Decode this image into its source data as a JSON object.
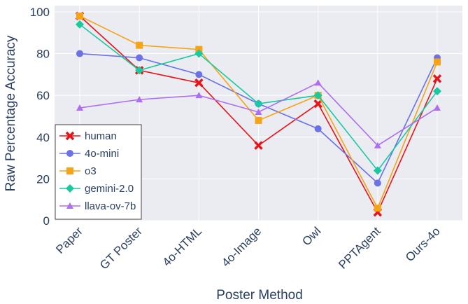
{
  "chart_data": {
    "type": "line",
    "title": "",
    "xlabel": "Poster Method",
    "ylabel": "Raw Percentage Accuracy",
    "categories": [
      "Paper",
      "GT Poster",
      "4o-HTML",
      "4o-Image",
      "Owl",
      "PPTAgent",
      "Ours-4o"
    ],
    "ylim": [
      0,
      103
    ],
    "yticks": [
      0,
      20,
      40,
      60,
      80,
      100
    ],
    "grid": true,
    "legend_position": "bottom-left",
    "series": [
      {
        "name": "human",
        "color": "#e8141a",
        "marker": "x",
        "values": [
          98,
          72,
          66,
          36,
          56,
          4,
          68
        ]
      },
      {
        "name": "4o-mini",
        "color": "#6a72e6",
        "marker": "circle",
        "values": [
          80,
          78,
          70,
          56,
          44,
          18,
          78
        ]
      },
      {
        "name": "o3",
        "color": "#f6a316",
        "marker": "square",
        "values": [
          98,
          84,
          82,
          48,
          60,
          6,
          76
        ]
      },
      {
        "name": "gemini-2.0",
        "color": "#19c9a0",
        "marker": "diamond",
        "values": [
          94,
          72,
          80,
          56,
          60,
          24,
          62
        ]
      },
      {
        "name": "llava-ov-7b",
        "color": "#ae6ef0",
        "marker": "triangle-up",
        "values": [
          54,
          58,
          60,
          52,
          66,
          36,
          54
        ]
      }
    ]
  }
}
